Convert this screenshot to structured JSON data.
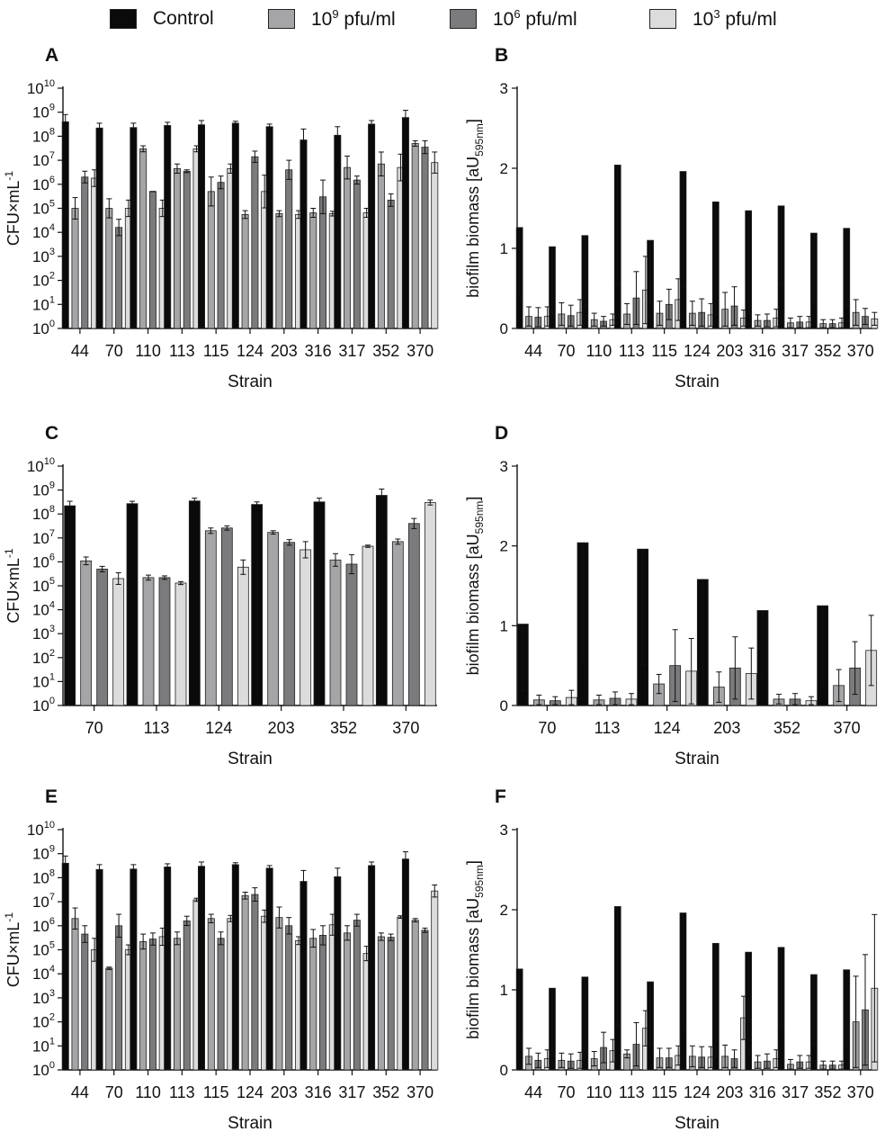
{
  "legend": {
    "items": [
      {
        "key": "control",
        "label": "Control",
        "color": "#0a0a0a"
      },
      {
        "key": "p9",
        "label_base": "10",
        "label_exp": "9",
        "label_rest": " pfu/ml",
        "color": "#a5a5a7"
      },
      {
        "key": "p6",
        "label_base": "10",
        "label_exp": "6",
        "label_rest": " pfu/ml",
        "color": "#7b7b7d"
      },
      {
        "key": "p3",
        "label_base": "10",
        "label_exp": "3",
        "label_rest": " pfu/ml",
        "color": "#dcdcdc"
      }
    ]
  },
  "colors": {
    "control": "#0a0a0a",
    "p9": "#a5a5a7",
    "p6": "#7b7b7d",
    "p3": "#dcdcdc",
    "axis": "#111111"
  },
  "chart_data": [
    {
      "panel": "A",
      "type": "bar",
      "scale": "log",
      "xlabel": "Strain",
      "ylabel_base": "CFU×mL",
      "ylabel_exp": "-1",
      "ylim": [
        1,
        10000000000.0
      ],
      "categories": [
        "44",
        "70",
        "110",
        "113",
        "115",
        "124",
        "203",
        "316",
        "317",
        "352",
        "370"
      ],
      "series": [
        {
          "name": "Control",
          "values": [
            400000000.0,
            220000000.0,
            230000000.0,
            280000000.0,
            300000000.0,
            350000000.0,
            250000000.0,
            70000000.0,
            110000000.0,
            320000000.0,
            600000000.0
          ],
          "errors": [
            800000000.0,
            350000000.0,
            350000000.0,
            380000000.0,
            450000000.0,
            420000000.0,
            320000000.0,
            200000000.0,
            250000000.0,
            450000000.0,
            1200000000.0
          ]
        },
        {
          "name": "10⁹ pfu/ml",
          "values": [
            100000.0,
            100000.0,
            30000000.0,
            4500000.0,
            500000.0,
            55000.0,
            60000.0,
            65000.0,
            5000000.0,
            7000000.0,
            50000000.0
          ],
          "errors": [
            280000.0,
            250000.0,
            40000000.0,
            7000000.0,
            2000000.0,
            80000.0,
            80000.0,
            100000.0,
            15000000.0,
            22000000.0,
            65000000.0
          ]
        },
        {
          "name": "10⁶ pfu/ml",
          "values": [
            2000000.0,
            16000.0,
            500000.0,
            3500000.0,
            1200000.0,
            14000000.0,
            4000000.0,
            300000.0,
            1500000.0,
            220000.0,
            35000000.0
          ],
          "errors": [
            3500000.0,
            35000.0,
            500000.0,
            4000000.0,
            2200000.0,
            24000000.0,
            10000000.0,
            1500000.0,
            2200000.0,
            400000.0,
            65000000.0
          ]
        },
        {
          "name": "10³ pfu/ml",
          "values": [
            1800000.0,
            100000.0,
            100000.0,
            30000000.0,
            4500000.0,
            500000.0,
            55000.0,
            60000.0,
            65000.0,
            5000000.0,
            8000000.0
          ],
          "errors": [
            4000000.0,
            220000.0,
            220000.0,
            40000000.0,
            7000000.0,
            2400000.0,
            80000.0,
            75000.0,
            100000.0,
            18000000.0,
            22000000.0
          ]
        }
      ]
    },
    {
      "panel": "B",
      "type": "bar",
      "scale": "linear",
      "xlabel": "Strain",
      "ylabel_base": "biofilm biomass [aU",
      "ylabel_sub": "595nm",
      "ylabel_end": "]",
      "ylim": [
        0,
        3
      ],
      "yticks": [
        "0",
        "1",
        "2",
        "3"
      ],
      "categories": [
        "44",
        "70",
        "110",
        "113",
        "115",
        "124",
        "203",
        "316",
        "317",
        "352",
        "370"
      ],
      "series": [
        {
          "name": "Control",
          "values": [
            1.26,
            1.02,
            1.16,
            2.04,
            1.1,
            1.96,
            1.58,
            1.47,
            1.53,
            1.19,
            1.25
          ],
          "errors": [
            0.4,
            0.18,
            0.27,
            0.55,
            0.32,
            0.51,
            0.17,
            0.18,
            0.55,
            0.32,
            0.27
          ]
        },
        {
          "name": "10⁹ pfu/ml",
          "values": [
            0.15,
            0.18,
            0.11,
            0.18,
            0.19,
            0.19,
            0.24,
            0.1,
            0.07,
            0.06,
            0.2
          ],
          "errors": [
            0.03,
            0.04,
            0.03,
            0.05,
            0.04,
            0.04,
            0.03,
            0.03,
            0.01,
            0.01,
            0.04
          ]
        },
        {
          "name": "10⁶ pfu/ml",
          "values": [
            0.14,
            0.16,
            0.09,
            0.38,
            0.3,
            0.2,
            0.28,
            0.1,
            0.08,
            0.06,
            0.15
          ],
          "errors": [
            0.02,
            0.03,
            0.03,
            0.05,
            0.11,
            0.03,
            0.04,
            0.02,
            0.01,
            0.01,
            0.05
          ]
        },
        {
          "name": "10³ pfu/ml",
          "values": [
            0.15,
            0.2,
            0.11,
            0.48,
            0.36,
            0.17,
            0.13,
            0.13,
            0.08,
            0.07,
            0.12
          ],
          "errors": [
            0.03,
            0.04,
            0.04,
            0.06,
            0.1,
            0.03,
            0.03,
            0.02,
            0.01,
            0.01,
            0.04
          ]
        }
      ]
    },
    {
      "panel": "C",
      "type": "bar",
      "scale": "log",
      "xlabel": "Strain",
      "ylabel_base": "CFU×mL",
      "ylabel_exp": "-1",
      "ylim": [
        1,
        10000000000.0
      ],
      "categories": [
        "70",
        "113",
        "124",
        "203",
        "352",
        "370"
      ],
      "series": [
        {
          "name": "Control",
          "values": [
            220000000.0,
            270000000.0,
            350000000.0,
            250000000.0,
            320000000.0,
            600000000.0
          ],
          "errors": [
            340000000.0,
            340000000.0,
            460000000.0,
            320000000.0,
            460000000.0,
            1100000000.0
          ]
        },
        {
          "name": "10⁹ pfu/ml",
          "values": [
            1100000.0,
            220000.0,
            20000000.0,
            17000000.0,
            1200000.0,
            7000000.0
          ],
          "errors": [
            1600000.0,
            280000.0,
            26000000.0,
            20000000.0,
            2200000.0,
            9000000.0
          ]
        },
        {
          "name": "10⁶ pfu/ml",
          "values": [
            500000.0,
            220000.0,
            26000000.0,
            6500000.0,
            800000.0,
            40000000.0
          ],
          "errors": [
            650000.0,
            260000.0,
            32000000.0,
            8500000.0,
            2000000.0,
            65000000.0
          ]
        },
        {
          "name": "10³ pfu/ml",
          "values": [
            200000.0,
            130000.0,
            600000.0,
            3200000.0,
            4500000.0,
            300000000.0
          ],
          "errors": [
            350000.0,
            150000.0,
            1200000.0,
            7000000.0,
            5000000.0,
            380000000.0
          ]
        }
      ]
    },
    {
      "panel": "D",
      "type": "bar",
      "scale": "linear",
      "xlabel": "Strain",
      "ylabel_base": "biofilm biomass [aU",
      "ylabel_sub": "595nm",
      "ylabel_end": "]",
      "ylim": [
        0,
        3
      ],
      "yticks": [
        "0",
        "1",
        "2",
        "3"
      ],
      "categories": [
        "70",
        "113",
        "124",
        "203",
        "352",
        "370"
      ],
      "series": [
        {
          "name": "Control",
          "values": [
            1.02,
            2.04,
            1.96,
            1.58,
            1.19,
            1.25
          ],
          "errors": [
            0.18,
            0.55,
            0.51,
            0.17,
            0.32,
            0.27
          ]
        },
        {
          "name": "10⁹ pfu/ml",
          "values": [
            0.07,
            0.07,
            0.27,
            0.23,
            0.08,
            0.25
          ],
          "errors": [
            0.01,
            0.01,
            0.15,
            0.04,
            0.02,
            0.05
          ]
        },
        {
          "name": "10⁶ pfu/ml",
          "values": [
            0.06,
            0.09,
            0.5,
            0.47,
            0.08,
            0.47
          ],
          "errors": [
            0.01,
            0.01,
            0.05,
            0.08,
            0.01,
            0.14
          ]
        },
        {
          "name": "10³ pfu/ml",
          "values": [
            0.1,
            0.08,
            0.43,
            0.4,
            0.06,
            0.69
          ],
          "errors": [
            0.01,
            0.01,
            0.02,
            0.08,
            0.01,
            0.25
          ]
        }
      ]
    },
    {
      "panel": "E",
      "type": "bar",
      "scale": "log",
      "xlabel": "Strain",
      "ylabel_base": "CFU×mL",
      "ylabel_exp": "-1",
      "ylim": [
        1,
        10000000000.0
      ],
      "categories": [
        "44",
        "70",
        "110",
        "113",
        "115",
        "124",
        "203",
        "316",
        "317",
        "352",
        "370"
      ],
      "series": [
        {
          "name": "Control",
          "values": [
            400000000.0,
            220000000.0,
            230000000.0,
            280000000.0,
            300000000.0,
            350000000.0,
            250000000.0,
            70000000.0,
            110000000.0,
            320000000.0,
            600000000.0
          ],
          "errors": [
            800000000.0,
            350000000.0,
            350000000.0,
            380000000.0,
            450000000.0,
            420000000.0,
            320000000.0,
            200000000.0,
            250000000.0,
            450000000.0,
            1200000000.0
          ]
        },
        {
          "name": "10⁹ pfu/ml",
          "values": [
            2000000.0,
            17000.0,
            220000.0,
            300000.0,
            2000000.0,
            18000000.0,
            2200000.0,
            300000.0,
            500000.0,
            350000.0,
            1700000.0
          ],
          "errors": [
            5500000.0,
            19000.0,
            450000.0,
            550000.0,
            3000000.0,
            25000000.0,
            6000000.0,
            700000.0,
            1000000.0,
            500000.0,
            2000000.0
          ]
        },
        {
          "name": "10⁶ pfu/ml",
          "values": [
            450000.0,
            1000000.0,
            280000.0,
            1600000.0,
            300000.0,
            20000000.0,
            1000000.0,
            400000.0,
            1700000.0,
            330000.0,
            650000.0
          ],
          "errors": [
            1000000.0,
            3000000.0,
            500000.0,
            2500000.0,
            550000.0,
            38000000.0,
            2200000.0,
            1000000.0,
            3000000.0,
            450000.0,
            800000.0
          ]
        },
        {
          "name": "10³ pfu/ml",
          "values": [
            100000.0,
            100000.0,
            350000.0,
            12000000.0,
            2000000.0,
            2500000.0,
            240000.0,
            1100000.0,
            70000.0,
            2300000.0,
            28000000.0
          ],
          "errors": [
            300000.0,
            160000.0,
            800000.0,
            14000000.0,
            2700000.0,
            4500000.0,
            350000.0,
            3000000.0,
            140000.0,
            2600000.0,
            50000000.0
          ]
        }
      ]
    },
    {
      "panel": "F",
      "type": "bar",
      "scale": "linear",
      "xlabel": "Strain",
      "ylabel_base": "biofilm biomass [aU",
      "ylabel_sub": "595nm",
      "ylabel_end": "]",
      "ylim": [
        0,
        3
      ],
      "yticks": [
        "0",
        "1",
        "2",
        "3"
      ],
      "categories": [
        "44",
        "70",
        "110",
        "113",
        "115",
        "124",
        "203",
        "316",
        "317",
        "352",
        "370"
      ],
      "series": [
        {
          "name": "Control",
          "values": [
            1.26,
            1.02,
            1.16,
            2.04,
            1.1,
            1.96,
            1.58,
            1.47,
            1.53,
            1.19,
            1.25
          ],
          "errors": [
            0.4,
            0.18,
            0.27,
            0.55,
            0.32,
            0.51,
            0.17,
            0.18,
            0.55,
            0.32,
            0.27
          ]
        },
        {
          "name": "10⁹ pfu/ml",
          "values": [
            0.17,
            0.12,
            0.14,
            0.2,
            0.15,
            0.17,
            0.17,
            0.1,
            0.07,
            0.06,
            0.6
          ],
          "errors": [
            0.07,
            0.03,
            0.05,
            0.15,
            0.03,
            0.04,
            0.03,
            0.02,
            0.01,
            0.01,
            0.03
          ]
        },
        {
          "name": "10⁶ pfu/ml",
          "values": [
            0.12,
            0.11,
            0.28,
            0.32,
            0.15,
            0.16,
            0.14,
            0.11,
            0.1,
            0.06,
            0.75
          ],
          "errors": [
            0.03,
            0.02,
            0.09,
            0.05,
            0.03,
            0.03,
            0.03,
            0.02,
            0.02,
            0.01,
            0.06
          ]
        },
        {
          "name": "10³ pfu/ml",
          "values": [
            0.14,
            0.12,
            0.24,
            0.52,
            0.18,
            0.16,
            0.65,
            0.14,
            0.1,
            0.06,
            1.02
          ],
          "errors": [
            0.03,
            0.02,
            0.1,
            0.3,
            0.06,
            0.03,
            0.38,
            0.03,
            0.02,
            0.01,
            0.1
          ]
        }
      ]
    }
  ]
}
